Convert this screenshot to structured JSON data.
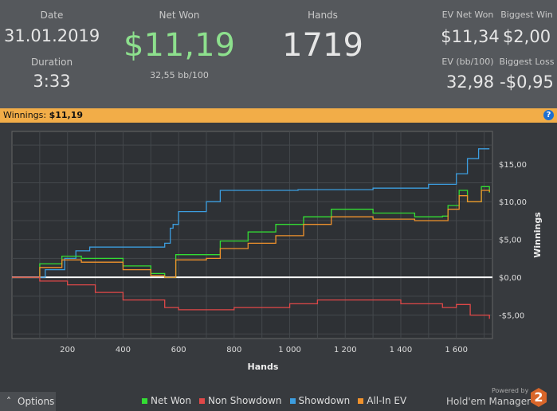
{
  "header": {
    "date_label": "Date",
    "date": "31.01.2019",
    "duration_label": "Duration",
    "duration": "3:33",
    "net_won_label": "Net Won",
    "net_won": "$11,19",
    "bb100": "32,55 bb/100",
    "hands_label": "Hands",
    "hands": "1719",
    "ev_net_won_label": "EV Net Won",
    "ev_net_won": "$11,34",
    "biggest_win_label": "Biggest Win",
    "biggest_win": "$2,00",
    "ev_bb_label": "EV (bb/100)",
    "ev_bb": "32,98",
    "biggest_loss_label": "Biggest Loss",
    "biggest_loss": "-$0,95"
  },
  "bar": {
    "label": "Winnings:",
    "value": "$11,19",
    "help": "?"
  },
  "footer": {
    "options": "Options",
    "powered_by": "Powered by",
    "brand": "Hold'em Manager",
    "brand_badge": "2"
  },
  "colors": {
    "net_won": "#33dd33",
    "non_showdown": "#e04848",
    "showdown": "#3c9ee0",
    "allin_ev": "#f0922c"
  },
  "chart_data": {
    "type": "line",
    "xlabel": "Hands",
    "ylabel": "Winnings",
    "xlim": [
      0,
      1730
    ],
    "ylim": [
      -8.1,
      19.3
    ],
    "xticks": [
      200,
      400,
      600,
      800,
      1000,
      1200,
      1400,
      1600
    ],
    "xtick_labels": [
      "200",
      "400",
      "600",
      "800",
      "1 000",
      "1 200",
      "1 400",
      "1 600"
    ],
    "yticks": [
      15,
      10,
      5,
      0,
      -5
    ],
    "ytick_labels": [
      "$15,00",
      "$10,00",
      "$5,00",
      "$0,00",
      "-$5,00"
    ],
    "series": [
      {
        "name": "Showdown",
        "color": "#3c9ee0",
        "x": [
          0,
          80,
          120,
          190,
          230,
          280,
          550,
          570,
          580,
          600,
          700,
          750,
          1000,
          1030,
          1300,
          1500,
          1600,
          1640,
          1680,
          1719
        ],
        "y": [
          0,
          0,
          1,
          2.5,
          3.5,
          4,
          4.5,
          6.5,
          7,
          8.7,
          10,
          11.5,
          11.5,
          11.6,
          11.8,
          12.3,
          13.7,
          15.7,
          17,
          17
        ]
      },
      {
        "name": "Net Won",
        "color": "#33dd33",
        "x": [
          0,
          100,
          180,
          250,
          400,
          500,
          550,
          590,
          700,
          750,
          850,
          950,
          1050,
          1150,
          1300,
          1450,
          1550,
          1570,
          1610,
          1640,
          1690,
          1719
        ],
        "y": [
          0,
          1.8,
          2.8,
          2.5,
          1.5,
          0.5,
          0,
          3,
          3,
          4.8,
          6,
          7,
          8,
          9,
          8.5,
          8,
          8.1,
          9.5,
          11.5,
          10,
          12,
          11.2
        ]
      },
      {
        "name": "All-In EV",
        "color": "#f0922c",
        "x": [
          0,
          100,
          180,
          250,
          400,
          500,
          550,
          590,
          700,
          750,
          850,
          950,
          1050,
          1150,
          1300,
          1450,
          1550,
          1570,
          1610,
          1640,
          1690,
          1719
        ],
        "y": [
          0,
          1.3,
          2.3,
          2,
          1,
          0.2,
          0,
          2.3,
          2.5,
          3.8,
          4.5,
          5.5,
          7,
          8,
          7.7,
          7.5,
          7.5,
          9,
          10.8,
          10,
          11.5,
          11.3
        ]
      },
      {
        "name": "Non Showdown",
        "color": "#e04848",
        "x": [
          0,
          100,
          200,
          300,
          400,
          550,
          600,
          800,
          1000,
          1100,
          1250,
          1400,
          1550,
          1600,
          1650,
          1719
        ],
        "y": [
          0,
          -0.5,
          -1,
          -2,
          -3,
          -4,
          -4.3,
          -4,
          -3.5,
          -3,
          -3,
          -3.5,
          -4,
          -3.6,
          -5,
          -5.5
        ]
      }
    ],
    "legend": [
      "Net Won",
      "Non Showdown",
      "Showdown",
      "All-In EV"
    ],
    "legend_position": "bottom",
    "grid": true
  }
}
